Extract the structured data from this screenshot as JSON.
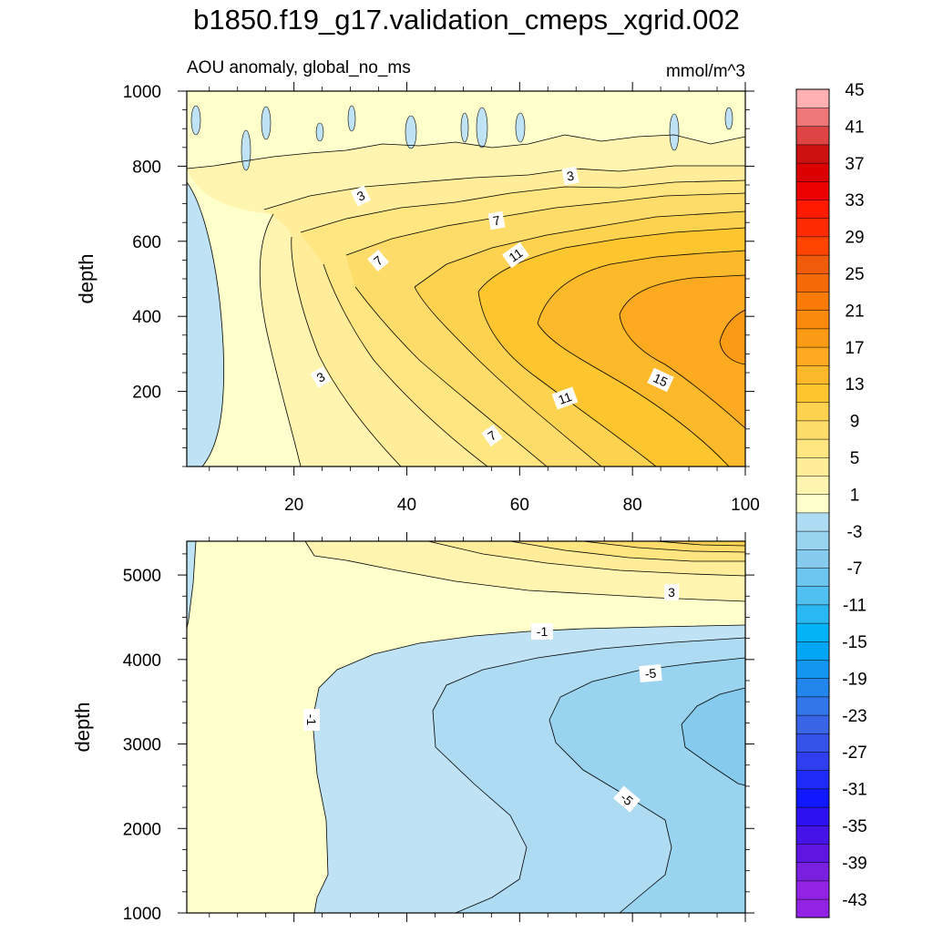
{
  "title": "b1850.f19_g17.validation_cmeps_xgrid.002",
  "subtitle": "AOU anomaly, global_no_ms",
  "units": "mmol/m^3",
  "colors": {
    "positive_ramp": [
      "#ffffcc",
      "#fff5b0",
      "#ffed99",
      "#ffe680",
      "#fedc6a",
      "#fdd24f",
      "#fdc62e",
      "#fcb92a",
      "#fcaa20",
      "#fb9a15",
      "#fa8a0d",
      "#f97b06",
      "#f56a05",
      "#f05b0b",
      "#ff4500",
      "#ff2c00",
      "#ff1a00",
      "#ee0000",
      "#dd0000",
      "#cc1111",
      "#dd4444",
      "#ee7777",
      "#ffb0b0"
    ],
    "negative_ramp": [
      "#bfe3f4",
      "#acdbf2",
      "#99d3f0",
      "#86cbee",
      "#6cc5ef",
      "#4fc0f0",
      "#2ab8f2",
      "#00b3f5",
      "#00a6f5",
      "#1195f0",
      "#2285ec",
      "#3175e9",
      "#3a64e6",
      "#3552e8",
      "#2f3ff0",
      "#1f2cf8",
      "#0f18ff",
      "#2c12f2",
      "#4512e8",
      "#5d17e0",
      "#7a1fe0",
      "#9222e4"
    ],
    "contour_line": "#000000",
    "background": "#ffffff"
  },
  "chart_data": [
    {
      "panel": "upper",
      "type": "contour",
      "xlabel": "",
      "ylabel": "depth",
      "xlim": [
        1,
        100
      ],
      "ylim": [
        1000,
        0
      ],
      "x_ticks": [
        20,
        40,
        60,
        80,
        100
      ],
      "y_ticks": [
        200,
        400,
        600,
        800,
        1000
      ],
      "contour_interval": 2,
      "contour_labels": [
        "3",
        "3",
        "7",
        "7",
        "11",
        "11",
        "15",
        "3",
        "7"
      ],
      "max_value_region": 17,
      "min_value_region": -3
    },
    {
      "panel": "lower",
      "type": "contour",
      "xlabel": "",
      "ylabel": "depth",
      "xlim": [
        1,
        100
      ],
      "ylim": [
        5400,
        1000
      ],
      "x_ticks": [
        20,
        40,
        60,
        80,
        100
      ],
      "y_ticks": [
        1000,
        2000,
        3000,
        4000,
        5000
      ],
      "contour_interval": 2,
      "contour_labels": [
        "3",
        "-1",
        "-5",
        "-1",
        "-5"
      ],
      "max_value_region": 11,
      "min_value_region": -7
    },
    {
      "panel": "colorbar",
      "type": "legend",
      "levels": [
        -45,
        -43,
        -41,
        -39,
        -37,
        -35,
        -33,
        -31,
        -29,
        -27,
        -25,
        -23,
        -21,
        -19,
        -17,
        -15,
        -13,
        -11,
        -9,
        -7,
        -5,
        -3,
        -1,
        1,
        3,
        5,
        7,
        9,
        11,
        13,
        15,
        17,
        19,
        21,
        23,
        25,
        27,
        29,
        31,
        33,
        35,
        37,
        39,
        41,
        43,
        45
      ],
      "tick_labels": [
        "45",
        "41",
        "37",
        "33",
        "29",
        "25",
        "21",
        "17",
        "13",
        "9",
        "5",
        "1",
        "-3",
        "-7",
        "-11",
        "-15",
        "-19",
        "-23",
        "-27",
        "-31",
        "-35",
        "-39",
        "-43"
      ]
    }
  ]
}
